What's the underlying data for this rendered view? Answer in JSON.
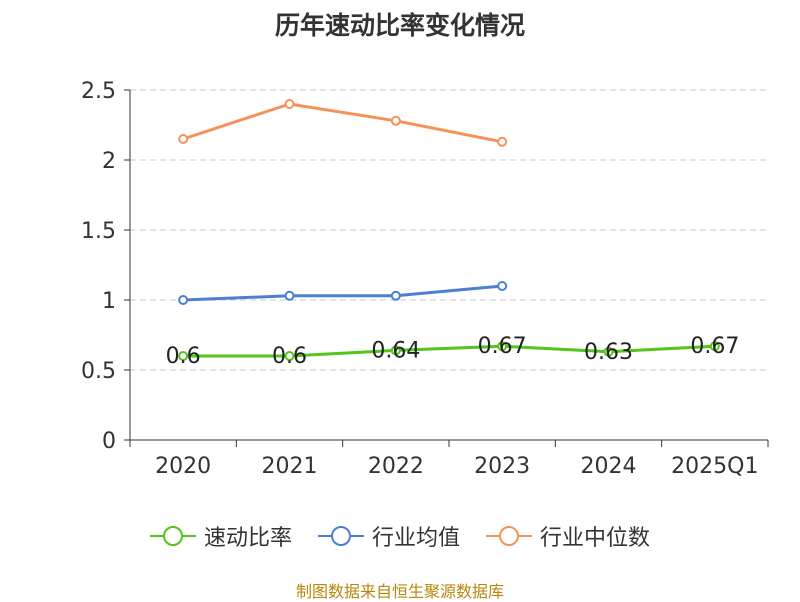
{
  "chart_data": {
    "type": "line",
    "title": "历年速动比率变化情况",
    "categories": [
      "2020",
      "2021",
      "2022",
      "2023",
      "2024",
      "2025Q1"
    ],
    "ylim": [
      0,
      2.5
    ],
    "yticks": [
      0,
      0.5,
      1,
      1.5,
      2,
      2.5
    ],
    "ytick_labels": [
      "0",
      "0.5",
      "1",
      "1.5",
      "2",
      "2.5"
    ],
    "grid": true,
    "legend_position": "bottom",
    "series": [
      {
        "name": "速动比率",
        "color": "#52c41a",
        "values": [
          0.6,
          0.6,
          0.64,
          0.67,
          0.63,
          0.67
        ],
        "labels": [
          "0.6",
          "0.6",
          "0.64",
          "0.67",
          "0.63",
          "0.67"
        ]
      },
      {
        "name": "行业均值",
        "color": "#4a7fd6",
        "values": [
          1.0,
          1.03,
          1.03,
          1.1,
          null,
          null
        ]
      },
      {
        "name": "行业中位数",
        "color": "#f5925a",
        "values": [
          2.15,
          2.4,
          2.28,
          2.13,
          null,
          null
        ]
      }
    ]
  },
  "footer": "制图数据来自恒生聚源数据库"
}
